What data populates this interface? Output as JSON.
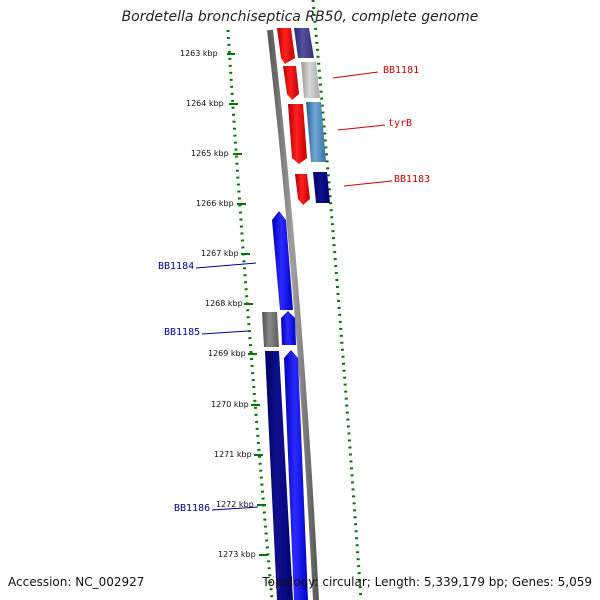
{
  "title": "Bordetella bronchiseptica RB50, complete genome",
  "footer": {
    "accession": "Accession: NC_002927",
    "topology": "Topology: circular; Length: 5,339,179 bp; Genes: 5,059"
  },
  "ticks": [
    "1263 kbp",
    "1264 kbp",
    "1265 kbp",
    "1266 kbp",
    "1267 kbp",
    "1268 kbp",
    "1269 kbp",
    "1270 kbp",
    "1271 kbp",
    "1272 kbp",
    "1273 kbp"
  ],
  "gene_labels": {
    "bb1181": "BB1181",
    "tyrb": "tyrB",
    "bb1183": "BB1183",
    "bb1184": "BB1184",
    "bb1185": "BB1185",
    "bb1186": "BB1186"
  },
  "colors": {
    "forward_cds": "#ff0000",
    "reverse_cds": "#0000ff",
    "backbone": "#808080",
    "gc_ticks": "#007700",
    "label_forward": "#cc0000",
    "label_reverse": "#000099"
  }
}
